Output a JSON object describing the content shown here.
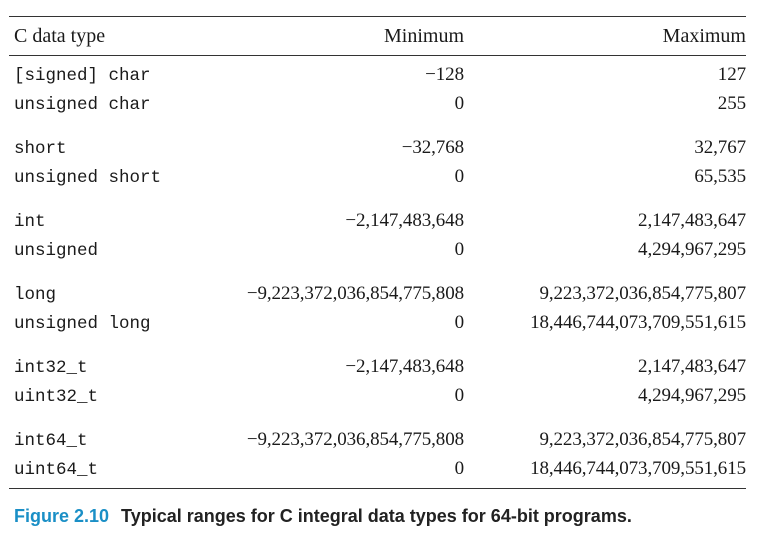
{
  "table": {
    "headers": {
      "type": "C data type",
      "min": "Minimum",
      "max": "Maximum"
    },
    "groups": [
      {
        "rows": [
          {
            "type_prefix": "[signed] ",
            "type_mono": "char",
            "min": "−128",
            "max": "127"
          },
          {
            "type_prefix": "unsigned ",
            "type_mono": "char",
            "min": "0",
            "max": "255"
          }
        ]
      },
      {
        "rows": [
          {
            "type_prefix": "",
            "type_mono": "short",
            "min": "−32,768",
            "max": "32,767"
          },
          {
            "type_prefix": "unsigned ",
            "type_mono": "short",
            "min": "0",
            "max": "65,535"
          }
        ]
      },
      {
        "rows": [
          {
            "type_prefix": "",
            "type_mono": "int",
            "min": "−2,147,483,648",
            "max": "2,147,483,647"
          },
          {
            "type_prefix": "",
            "type_mono": "unsigned",
            "min": "0",
            "max": "4,294,967,295"
          }
        ]
      },
      {
        "rows": [
          {
            "type_prefix": "",
            "type_mono": "long",
            "min": "−9,223,372,036,854,775,808",
            "max": "9,223,372,036,854,775,807"
          },
          {
            "type_prefix": "unsigned ",
            "type_mono": "long",
            "min": "0",
            "max": "18,446,744,073,709,551,615"
          }
        ]
      },
      {
        "rows": [
          {
            "type_prefix": "",
            "type_mono": "int32_t",
            "min": "−2,147,483,648",
            "max": "2,147,483,647"
          },
          {
            "type_prefix": "",
            "type_mono": "uint32_t",
            "min": "0",
            "max": "4,294,967,295"
          }
        ]
      },
      {
        "rows": [
          {
            "type_prefix": "",
            "type_mono": "int64_t",
            "min": "−9,223,372,036,854,775,808",
            "max": "9,223,372,036,854,775,807"
          },
          {
            "type_prefix": "",
            "type_mono": "uint64_t",
            "min": "0",
            "max": "18,446,744,073,709,551,615"
          }
        ]
      }
    ]
  },
  "caption": {
    "figure_label": "Figure 2.10",
    "text": "Typical ranges for C integral data types for 64-bit programs."
  },
  "colors": {
    "figure_label": "#1a8fc6",
    "rule": "#333333"
  }
}
